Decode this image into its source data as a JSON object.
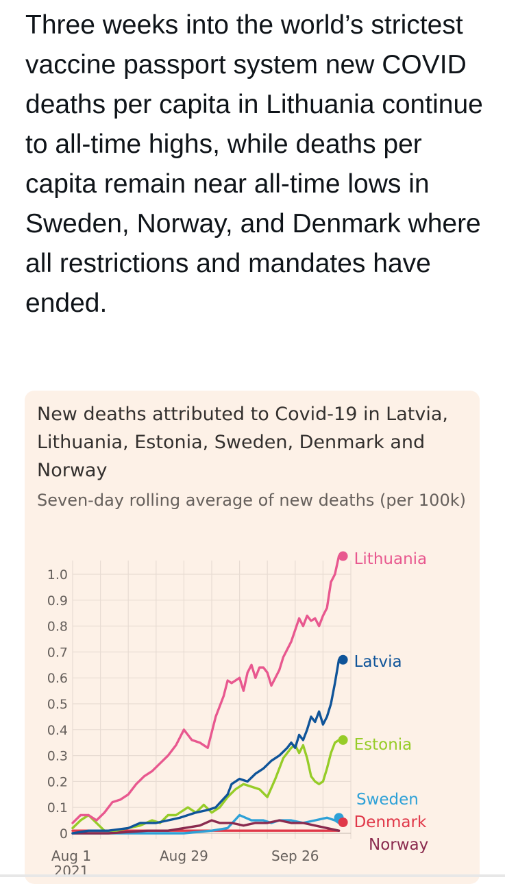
{
  "tweet": {
    "text": "Three weeks into the world’s strictest vaccine passport system new COVID deaths per capita in Lithuania continue to all-time highs, while deaths per capita remain near all-time lows in Sweden, Norway, and Denmark where all restrictions and mandates have ended."
  },
  "chart_data": {
    "type": "line",
    "title": "New deaths attributed to Covid-19 in Latvia, Lithuania, Estonia, Sweden, Denmark and Norway",
    "subtitle": "Seven-day rolling average of new deaths (per 100k)",
    "xlabel": "",
    "ylabel": "",
    "x_range": [
      "2021-08-01",
      "2021-10-10"
    ],
    "ylim": [
      0,
      1.0
    ],
    "y_ticks": [
      0,
      0.1,
      0.2,
      0.3,
      0.4,
      0.5,
      0.6,
      0.7,
      0.8,
      0.9,
      1.0
    ],
    "y_tick_labels": [
      "0",
      "0.1",
      "0.2",
      "0.3",
      "0.4",
      "0.5",
      "0.6",
      "0.7",
      "0.8",
      "0.9",
      "1.0"
    ],
    "x_ticks": [
      "2021-08-01",
      "2021-08-29",
      "2021-09-26"
    ],
    "x_tick_labels": [
      "Aug 1\n2021",
      "Aug 29",
      "Sep 26"
    ],
    "grid": true,
    "legend": "end-of-line labels",
    "series": [
      {
        "name": "Lithuania",
        "color": "#e8588f",
        "points": [
          [
            "2021-08-01",
            0.04
          ],
          [
            "2021-08-03",
            0.07
          ],
          [
            "2021-08-05",
            0.07
          ],
          [
            "2021-08-07",
            0.05
          ],
          [
            "2021-08-09",
            0.08
          ],
          [
            "2021-08-11",
            0.12
          ],
          [
            "2021-08-13",
            0.13
          ],
          [
            "2021-08-15",
            0.15
          ],
          [
            "2021-08-17",
            0.19
          ],
          [
            "2021-08-19",
            0.22
          ],
          [
            "2021-08-21",
            0.24
          ],
          [
            "2021-08-23",
            0.27
          ],
          [
            "2021-08-25",
            0.3
          ],
          [
            "2021-08-27",
            0.34
          ],
          [
            "2021-08-29",
            0.4
          ],
          [
            "2021-08-30",
            0.38
          ],
          [
            "2021-08-31",
            0.36
          ],
          [
            "2021-09-02",
            0.35
          ],
          [
            "2021-09-04",
            0.33
          ],
          [
            "2021-09-06",
            0.45
          ],
          [
            "2021-09-08",
            0.53
          ],
          [
            "2021-09-09",
            0.59
          ],
          [
            "2021-09-10",
            0.58
          ],
          [
            "2021-09-12",
            0.6
          ],
          [
            "2021-09-13",
            0.55
          ],
          [
            "2021-09-14",
            0.62
          ],
          [
            "2021-09-15",
            0.65
          ],
          [
            "2021-09-16",
            0.6
          ],
          [
            "2021-09-17",
            0.64
          ],
          [
            "2021-09-18",
            0.64
          ],
          [
            "2021-09-19",
            0.62
          ],
          [
            "2021-09-20",
            0.57
          ],
          [
            "2021-09-22",
            0.63
          ],
          [
            "2021-09-23",
            0.68
          ],
          [
            "2021-09-25",
            0.74
          ],
          [
            "2021-09-27",
            0.83
          ],
          [
            "2021-09-28",
            0.8
          ],
          [
            "2021-09-29",
            0.84
          ],
          [
            "2021-09-30",
            0.82
          ],
          [
            "2021-10-01",
            0.83
          ],
          [
            "2021-10-02",
            0.8
          ],
          [
            "2021-10-03",
            0.84
          ],
          [
            "2021-10-04",
            0.87
          ],
          [
            "2021-10-05",
            0.97
          ],
          [
            "2021-10-06",
            1.0
          ],
          [
            "2021-10-07",
            1.07
          ]
        ]
      },
      {
        "name": "Latvia",
        "color": "#0f5499",
        "points": [
          [
            "2021-08-01",
            0.0
          ],
          [
            "2021-08-05",
            0.01
          ],
          [
            "2021-08-10",
            0.01
          ],
          [
            "2021-08-15",
            0.02
          ],
          [
            "2021-08-18",
            0.04
          ],
          [
            "2021-08-22",
            0.04
          ],
          [
            "2021-08-25",
            0.05
          ],
          [
            "2021-08-28",
            0.06
          ],
          [
            "2021-09-01",
            0.08
          ],
          [
            "2021-09-04",
            0.09
          ],
          [
            "2021-09-06",
            0.1
          ],
          [
            "2021-09-09",
            0.15
          ],
          [
            "2021-09-10",
            0.19
          ],
          [
            "2021-09-12",
            0.21
          ],
          [
            "2021-09-14",
            0.2
          ],
          [
            "2021-09-16",
            0.23
          ],
          [
            "2021-09-18",
            0.25
          ],
          [
            "2021-09-20",
            0.28
          ],
          [
            "2021-09-22",
            0.3
          ],
          [
            "2021-09-24",
            0.33
          ],
          [
            "2021-09-25",
            0.35
          ],
          [
            "2021-09-26",
            0.33
          ],
          [
            "2021-09-27",
            0.38
          ],
          [
            "2021-09-28",
            0.36
          ],
          [
            "2021-09-29",
            0.4
          ],
          [
            "2021-09-30",
            0.45
          ],
          [
            "2021-10-01",
            0.43
          ],
          [
            "2021-10-02",
            0.47
          ],
          [
            "2021-10-03",
            0.42
          ],
          [
            "2021-10-04",
            0.45
          ],
          [
            "2021-10-05",
            0.5
          ],
          [
            "2021-10-06",
            0.58
          ],
          [
            "2021-10-07",
            0.67
          ]
        ]
      },
      {
        "name": "Estonia",
        "color": "#96cc28",
        "points": [
          [
            "2021-08-01",
            0.02
          ],
          [
            "2021-08-03",
            0.05
          ],
          [
            "2021-08-05",
            0.07
          ],
          [
            "2021-08-07",
            0.04
          ],
          [
            "2021-08-09",
            0.01
          ],
          [
            "2021-08-12",
            0.01
          ],
          [
            "2021-08-15",
            0.02
          ],
          [
            "2021-08-18",
            0.03
          ],
          [
            "2021-08-21",
            0.05
          ],
          [
            "2021-08-23",
            0.04
          ],
          [
            "2021-08-25",
            0.07
          ],
          [
            "2021-08-27",
            0.07
          ],
          [
            "2021-08-30",
            0.1
          ],
          [
            "2021-09-01",
            0.08
          ],
          [
            "2021-09-03",
            0.11
          ],
          [
            "2021-09-05",
            0.08
          ],
          [
            "2021-09-07",
            0.1
          ],
          [
            "2021-09-09",
            0.14
          ],
          [
            "2021-09-11",
            0.17
          ],
          [
            "2021-09-13",
            0.19
          ],
          [
            "2021-09-15",
            0.18
          ],
          [
            "2021-09-17",
            0.17
          ],
          [
            "2021-09-19",
            0.14
          ],
          [
            "2021-09-21",
            0.21
          ],
          [
            "2021-09-23",
            0.29
          ],
          [
            "2021-09-25",
            0.33
          ],
          [
            "2021-09-26",
            0.34
          ],
          [
            "2021-09-27",
            0.31
          ],
          [
            "2021-09-28",
            0.34
          ],
          [
            "2021-09-29",
            0.29
          ],
          [
            "2021-09-30",
            0.22
          ],
          [
            "2021-10-01",
            0.2
          ],
          [
            "2021-10-02",
            0.19
          ],
          [
            "2021-10-03",
            0.2
          ],
          [
            "2021-10-04",
            0.25
          ],
          [
            "2021-10-05",
            0.31
          ],
          [
            "2021-10-06",
            0.35
          ],
          [
            "2021-10-07",
            0.36
          ]
        ]
      },
      {
        "name": "Sweden",
        "color": "#2ea1d7",
        "points": [
          [
            "2021-08-01",
            0.0
          ],
          [
            "2021-08-10",
            0.0
          ],
          [
            "2021-08-20",
            0.0
          ],
          [
            "2021-08-29",
            0.0
          ],
          [
            "2021-09-05",
            0.01
          ],
          [
            "2021-09-09",
            0.02
          ],
          [
            "2021-09-12",
            0.07
          ],
          [
            "2021-09-15",
            0.05
          ],
          [
            "2021-09-18",
            0.05
          ],
          [
            "2021-09-20",
            0.04
          ],
          [
            "2021-09-22",
            0.05
          ],
          [
            "2021-09-25",
            0.05
          ],
          [
            "2021-09-28",
            0.04
          ],
          [
            "2021-10-01",
            0.05
          ],
          [
            "2021-10-04",
            0.06
          ],
          [
            "2021-10-06",
            0.05
          ],
          [
            "2021-10-07",
            0.04
          ]
        ]
      },
      {
        "name": "Denmark",
        "color": "#e03849",
        "points": [
          [
            "2021-08-01",
            0.01
          ],
          [
            "2021-08-10",
            0.01
          ],
          [
            "2021-08-20",
            0.01
          ],
          [
            "2021-08-29",
            0.01
          ],
          [
            "2021-09-05",
            0.01
          ],
          [
            "2021-09-10",
            0.01
          ],
          [
            "2021-09-15",
            0.01
          ],
          [
            "2021-09-20",
            0.01
          ],
          [
            "2021-09-25",
            0.01
          ],
          [
            "2021-09-30",
            0.01
          ],
          [
            "2021-10-07",
            0.01
          ]
        ]
      },
      {
        "name": "Norway",
        "color": "#8a2a4e",
        "points": [
          [
            "2021-08-01",
            0.0
          ],
          [
            "2021-08-10",
            0.0
          ],
          [
            "2021-08-20",
            0.01
          ],
          [
            "2021-08-25",
            0.01
          ],
          [
            "2021-08-29",
            0.02
          ],
          [
            "2021-09-02",
            0.03
          ],
          [
            "2021-09-05",
            0.05
          ],
          [
            "2021-09-07",
            0.04
          ],
          [
            "2021-09-10",
            0.04
          ],
          [
            "2021-09-13",
            0.03
          ],
          [
            "2021-09-16",
            0.04
          ],
          [
            "2021-09-19",
            0.04
          ],
          [
            "2021-09-22",
            0.05
          ],
          [
            "2021-09-25",
            0.04
          ],
          [
            "2021-09-28",
            0.04
          ],
          [
            "2021-10-01",
            0.03
          ],
          [
            "2021-10-04",
            0.02
          ],
          [
            "2021-10-07",
            0.01
          ]
        ]
      }
    ]
  }
}
